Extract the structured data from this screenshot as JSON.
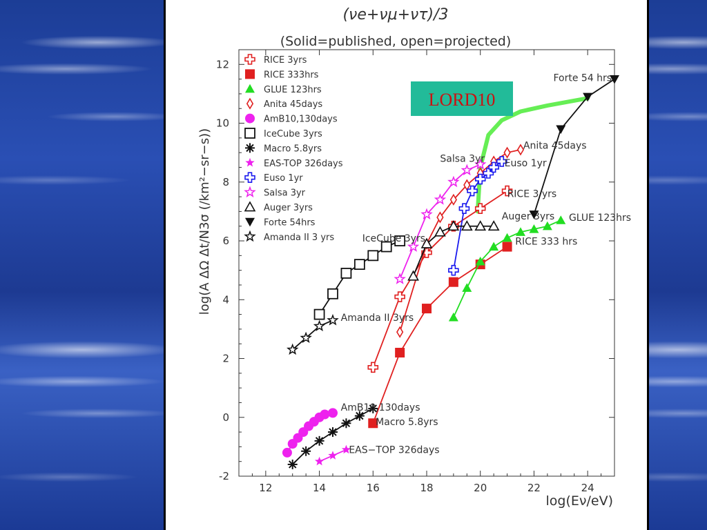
{
  "slide": {
    "title_formula": "(νe+νμ+ντ)/3",
    "subtitle": "(Solid=published, open=projected)",
    "highlight_label": "LORD10"
  },
  "chart_data": {
    "type": "line",
    "title": "(νe+νμ+ντ)/3",
    "subtitle": "(Solid=published, open=projected)",
    "xlabel": "log(Eν/eV)",
    "ylabel": "log(A ΔΩ Δt/N3σ (/km²−sr−s))",
    "xlim": [
      11,
      25
    ],
    "ylim": [
      -2,
      12.5
    ],
    "xticks": [
      12,
      14,
      16,
      18,
      20,
      22,
      24
    ],
    "yticks": [
      -2,
      0,
      2,
      4,
      6,
      8,
      10,
      12
    ],
    "legend_position": "top-left",
    "series": [
      {
        "name": "RICE 3yrs",
        "color": "#e02020",
        "marker": "cross-open",
        "label": "RICE 3 yrs",
        "x": [
          16,
          17,
          18,
          19,
          20,
          21
        ],
        "y": [
          1.7,
          4.1,
          5.6,
          6.5,
          7.1,
          7.7
        ]
      },
      {
        "name": "RICE 333hrs",
        "color": "#e02020",
        "marker": "square-filled",
        "label": "RICE 333 hrs",
        "x": [
          16,
          17,
          18,
          19,
          20,
          21
        ],
        "y": [
          -0.2,
          2.2,
          3.7,
          4.6,
          5.2,
          5.8
        ]
      },
      {
        "name": "GLUE 123hrs",
        "color": "#22dd22",
        "marker": "triangle-filled",
        "label": "GLUE 123hrs",
        "x": [
          19,
          19.5,
          20,
          20.5,
          21,
          21.5,
          22,
          22.5,
          23
        ],
        "y": [
          3.4,
          4.4,
          5.3,
          5.8,
          6.1,
          6.3,
          6.4,
          6.5,
          6.7
        ]
      },
      {
        "name": "Anita 45days",
        "color": "#e02020",
        "marker": "diamond-open",
        "label": "Anita 45days",
        "x": [
          17,
          18,
          18.5,
          19,
          19.5,
          20,
          20.5,
          21,
          21.5
        ],
        "y": [
          2.9,
          5.9,
          6.8,
          7.4,
          7.9,
          8.3,
          8.7,
          9.0,
          9.1
        ]
      },
      {
        "name": "AmB10,130days",
        "color": "#ee22ee",
        "marker": "circle-filled",
        "label": "AmB10,130days",
        "x": [
          12.8,
          13,
          13.2,
          13.4,
          13.6,
          13.8,
          14,
          14.2,
          14.5
        ],
        "y": [
          -1.2,
          -0.9,
          -0.7,
          -0.5,
          -0.3,
          -0.15,
          0,
          0.1,
          0.15
        ]
      },
      {
        "name": "IceCube 3yrs",
        "color": "#111111",
        "marker": "square-open",
        "label": "IceCube 3yrs",
        "x": [
          14,
          14.5,
          15,
          15.5,
          16,
          16.5,
          17
        ],
        "y": [
          3.5,
          4.2,
          4.9,
          5.2,
          5.5,
          5.8,
          6.0
        ]
      },
      {
        "name": "Macro 5.8yrs",
        "color": "#111111",
        "marker": "asterisk",
        "label": "Macro 5.8yrs",
        "x": [
          13,
          13.5,
          14,
          14.5,
          15,
          15.5,
          16
        ],
        "y": [
          -1.6,
          -1.15,
          -0.8,
          -0.5,
          -0.2,
          0.05,
          0.3
        ]
      },
      {
        "name": "EAS-TOP 326days",
        "color": "#ee22ee",
        "marker": "star-filled",
        "label": "EAS−TOP 326days",
        "x": [
          14,
          14.5,
          15
        ],
        "y": [
          -1.5,
          -1.3,
          -1.1
        ]
      },
      {
        "name": "Euso 1yr",
        "color": "#1a1aee",
        "marker": "cross-open",
        "label": "Euso 1yr",
        "x": [
          19,
          19.4,
          19.7,
          20,
          20.3,
          20.5,
          20.8
        ],
        "y": [
          5.0,
          7.1,
          7.7,
          8.1,
          8.3,
          8.5,
          8.7
        ]
      },
      {
        "name": "Salsa 3yr",
        "color": "#ee22ee",
        "marker": "star-open",
        "label": "Salsa 3yr",
        "x": [
          17,
          17.5,
          18,
          18.5,
          19,
          19.5,
          20
        ],
        "y": [
          4.7,
          5.8,
          6.9,
          7.4,
          8.0,
          8.4,
          8.6
        ]
      },
      {
        "name": "Auger 3yrs",
        "color": "#111111",
        "marker": "triangle-open",
        "label": "Auger 3yrs",
        "x": [
          17.5,
          18,
          18.5,
          19,
          19.5,
          20,
          20.5
        ],
        "y": [
          4.8,
          5.9,
          6.3,
          6.5,
          6.5,
          6.5,
          6.5
        ]
      },
      {
        "name": "Forte 54hrs",
        "color": "#111111",
        "marker": "triangle-down-filled",
        "label": "Forte 54 hrs",
        "x": [
          22,
          23,
          24,
          25
        ],
        "y": [
          6.9,
          9.8,
          10.9,
          11.5
        ]
      },
      {
        "name": "Amanda II 3 yrs",
        "color": "#111111",
        "marker": "star-open",
        "label": "Amanda II 3yrs",
        "x": [
          13,
          13.5,
          14,
          14.5
        ],
        "y": [
          2.3,
          2.7,
          3.1,
          3.3
        ]
      }
    ],
    "lord10_curve": {
      "name": "LORD10",
      "color": "#66ee55",
      "x": [
        19.9,
        20.0,
        20.3,
        20.8,
        21.5,
        22.5,
        24
      ],
      "y": [
        7.0,
        8.5,
        9.6,
        10.1,
        10.4,
        10.6,
        10.85
      ]
    }
  }
}
